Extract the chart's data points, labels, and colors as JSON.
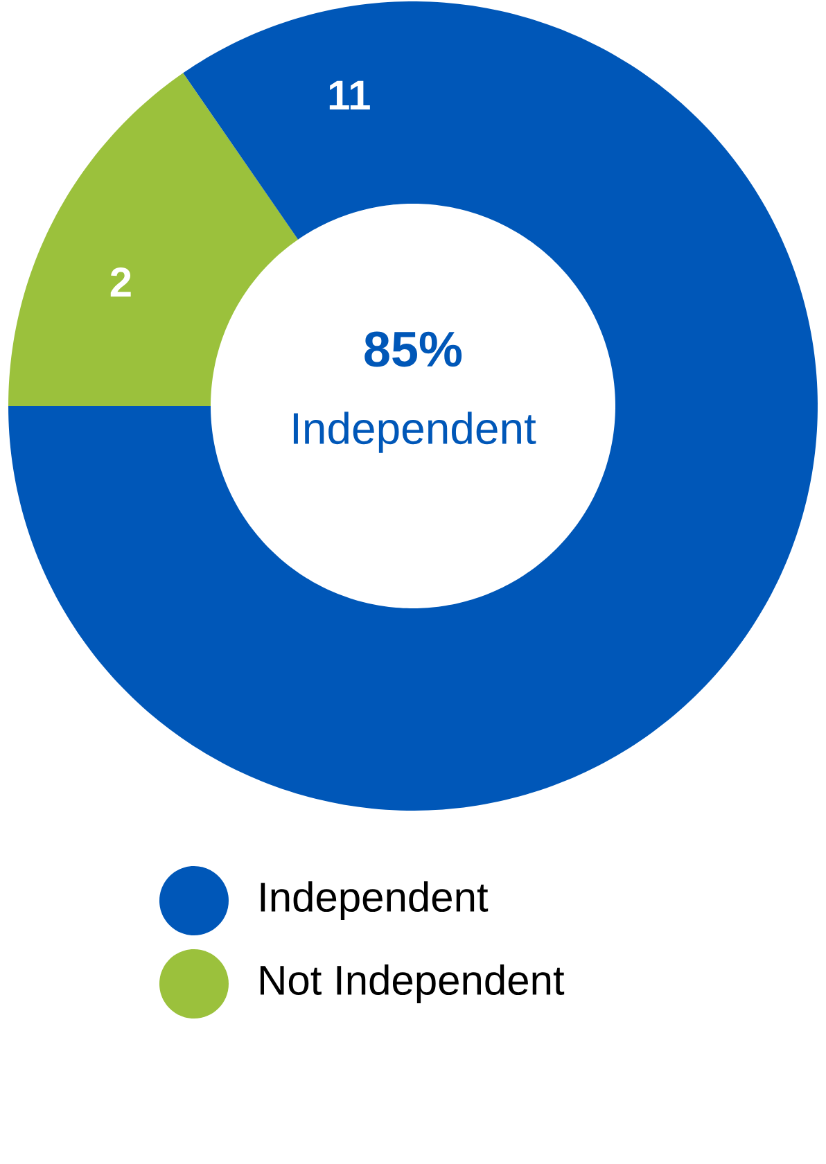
{
  "chart_data": {
    "type": "donut",
    "categories": [
      "Independent",
      "Not Independent"
    ],
    "values": [
      11,
      2
    ],
    "colors": [
      "#0057b8",
      "#9bc13c"
    ],
    "data_labels": true,
    "annotations": [
      "85%",
      "Independent"
    ],
    "legend": "bottom"
  }
}
